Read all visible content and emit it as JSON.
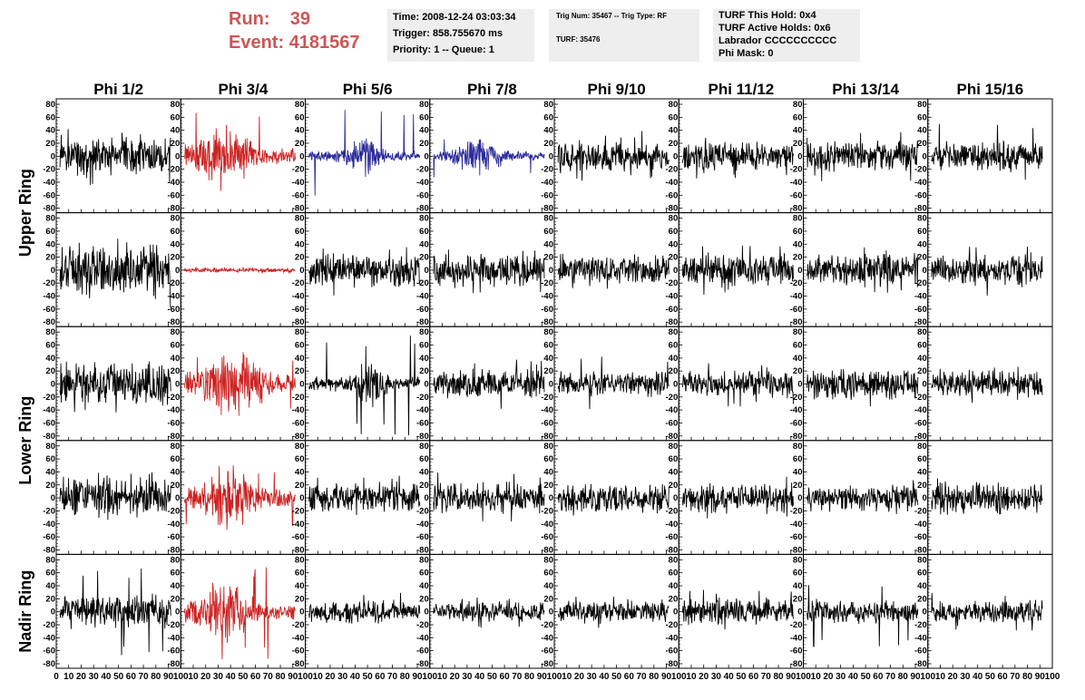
{
  "run_label": "Run:",
  "run_value": "39",
  "event_label": "Event:",
  "event_value": "4181567",
  "info_time": [
    "Time: 2008-12-24 03:03:34",
    "Trigger: 858.755670 ms",
    "Priority: 1 -- Queue: 1"
  ],
  "info_trig": [
    "Trig Num: 35467 -- Trig Type: RF",
    "TURF: 35476"
  ],
  "info_turf": [
    "TURF This Hold: 0x4",
    "TURF Active Holds: 0x6",
    "Labrador CCCCCCCCCC",
    "Phi Mask: 0"
  ],
  "colors": {
    "title_red": "#cc5555",
    "trace_black": "#000000",
    "trace_red": "#cc2222",
    "trace_blue": "#2a2a99",
    "info_bg": "#eeeeee"
  },
  "chart_data": {
    "type": "line",
    "title": "",
    "columns": [
      "Phi 1/2",
      "Phi 3/4",
      "Phi 5/6",
      "Phi 7/8",
      "Phi 9/10",
      "Phi 11/12",
      "Phi 13/14",
      "Phi 15/16"
    ],
    "row_labels": [
      "Upper Ring",
      "Upper Ring",
      "Lower Ring",
      "Lower Ring",
      "Nadir Ring"
    ],
    "ylim": [
      -80,
      80
    ],
    "yticks": [
      -80,
      -60,
      -40,
      -20,
      0,
      20,
      40,
      60,
      80
    ],
    "xlim": [
      0,
      100
    ],
    "xticks": [
      0,
      10,
      20,
      30,
      40,
      50,
      60,
      70,
      80,
      90,
      100
    ],
    "trace_x": [
      3,
      92
    ],
    "traces": [
      [
        {
          "color": "black",
          "amp": 18,
          "peak": 45
        },
        {
          "color": "red",
          "amp": 22,
          "peak": 80,
          "burst_center": 35,
          "burst_width": 30
        },
        {
          "color": "blue",
          "amp": 15,
          "peak": 80,
          "burst_center": 45,
          "burst_width": 18
        },
        {
          "color": "blue",
          "amp": 12,
          "peak": 35,
          "burst_center": 40,
          "burst_width": 25
        },
        {
          "color": "black",
          "amp": 14,
          "peak": 40
        },
        {
          "color": "black",
          "amp": 13,
          "peak": 35
        },
        {
          "color": "black",
          "amp": 14,
          "peak": 40
        },
        {
          "color": "black",
          "amp": 13,
          "peak": 50
        }
      ],
      [
        {
          "color": "black",
          "amp": 25,
          "peak": 60
        },
        {
          "color": "red",
          "amp": 2,
          "peak": 5
        },
        {
          "color": "black",
          "amp": 15,
          "peak": 40
        },
        {
          "color": "black",
          "amp": 15,
          "peak": 40
        },
        {
          "color": "black",
          "amp": 14,
          "peak": 35
        },
        {
          "color": "black",
          "amp": 15,
          "peak": 40
        },
        {
          "color": "black",
          "amp": 14,
          "peak": 35
        },
        {
          "color": "black",
          "amp": 15,
          "peak": 40
        }
      ],
      [
        {
          "color": "black",
          "amp": 20,
          "peak": 45
        },
        {
          "color": "red",
          "amp": 22,
          "peak": 50,
          "burst_center": 40,
          "burst_width": 35
        },
        {
          "color": "black",
          "amp": 18,
          "peak": 80,
          "burst_center": 50,
          "burst_width": 15
        },
        {
          "color": "black",
          "amp": 13,
          "peak": 40
        },
        {
          "color": "black",
          "amp": 12,
          "peak": 45
        },
        {
          "color": "black",
          "amp": 13,
          "peak": 35
        },
        {
          "color": "black",
          "amp": 14,
          "peak": 40
        },
        {
          "color": "black",
          "amp": 12,
          "peak": 30
        }
      ],
      [
        {
          "color": "black",
          "amp": 18,
          "peak": 40
        },
        {
          "color": "red",
          "amp": 20,
          "peak": 50,
          "burst_center": 40,
          "burst_width": 30
        },
        {
          "color": "black",
          "amp": 14,
          "peak": 35
        },
        {
          "color": "black",
          "amp": 14,
          "peak": 40
        },
        {
          "color": "black",
          "amp": 13,
          "peak": 30
        },
        {
          "color": "black",
          "amp": 14,
          "peak": 35
        },
        {
          "color": "black",
          "amp": 12,
          "peak": 30
        },
        {
          "color": "black",
          "amp": 14,
          "peak": 35
        }
      ],
      [
        {
          "color": "black",
          "amp": 15,
          "peak": 70
        },
        {
          "color": "red",
          "amp": 20,
          "peak": 75,
          "burst_center": 35,
          "burst_width": 30
        },
        {
          "color": "black",
          "amp": 10,
          "peak": 30
        },
        {
          "color": "black",
          "amp": 10,
          "peak": 25
        },
        {
          "color": "black",
          "amp": 10,
          "peak": 25
        },
        {
          "color": "black",
          "amp": 12,
          "peak": 35
        },
        {
          "color": "black",
          "amp": 11,
          "peak": 55
        },
        {
          "color": "black",
          "amp": 10,
          "peak": 30
        }
      ]
    ]
  }
}
